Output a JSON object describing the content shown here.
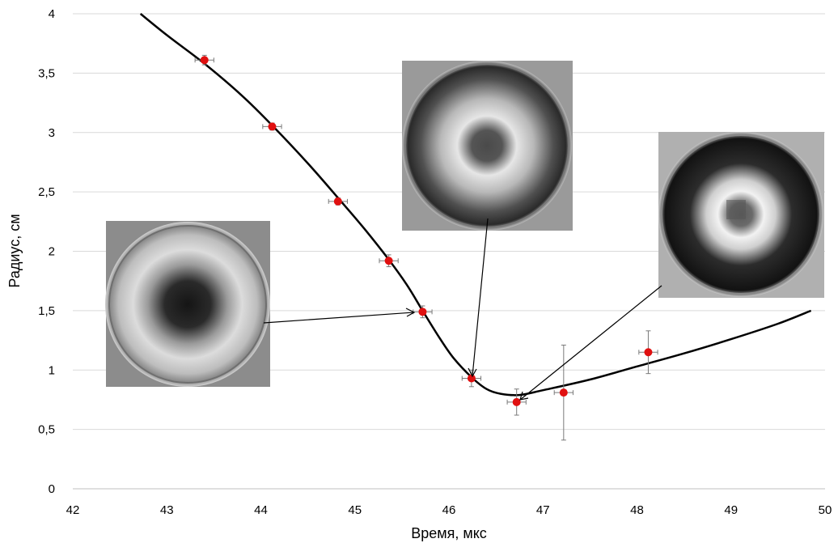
{
  "chart_data": {
    "type": "scatter",
    "title": "",
    "xlabel": "Время, мкс",
    "ylabel": "Радиус, см",
    "xlim": [
      42,
      50
    ],
    "ylim": [
      0,
      4
    ],
    "x_ticks": [
      42,
      43,
      44,
      45,
      46,
      47,
      48,
      49,
      50
    ],
    "y_ticks": [
      0,
      0.5,
      1,
      1.5,
      2,
      2.5,
      3,
      3.5,
      4
    ],
    "x_tick_labels": [
      "42",
      "43",
      "44",
      "45",
      "46",
      "47",
      "48",
      "49",
      "50"
    ],
    "y_tick_labels": [
      "0",
      "0,5",
      "1",
      "1,5",
      "2",
      "2,5",
      "3",
      "3,5",
      "4"
    ],
    "grid": "horizontal",
    "legend": "none",
    "colors": {
      "points": "#e01010",
      "curve": "#000000",
      "grid": "#d9d9d9"
    },
    "points": [
      {
        "x": 43.4,
        "y": 3.61,
        "xerr": 0.1,
        "yerr": 0.04
      },
      {
        "x": 44.12,
        "y": 3.05,
        "xerr": 0.1,
        "yerr": 0.03
      },
      {
        "x": 44.82,
        "y": 2.42,
        "xerr": 0.1,
        "yerr": 0.03
      },
      {
        "x": 45.36,
        "y": 1.92,
        "xerr": 0.1,
        "yerr": 0.05
      },
      {
        "x": 45.72,
        "y": 1.49,
        "xerr": 0.1,
        "yerr": 0.05
      },
      {
        "x": 46.24,
        "y": 0.93,
        "xerr": 0.1,
        "yerr": 0.07
      },
      {
        "x": 46.72,
        "y": 0.73,
        "xerr": 0.1,
        "yerr": 0.11
      },
      {
        "x": 47.22,
        "y": 0.81,
        "xerr": 0.1,
        "yerr": 0.4
      },
      {
        "x": 48.12,
        "y": 1.15,
        "xerr": 0.1,
        "yerr": 0.18
      }
    ],
    "fit_curve": [
      [
        42.72,
        4.0
      ],
      [
        43.0,
        3.82
      ],
      [
        43.4,
        3.58
      ],
      [
        43.8,
        3.31
      ],
      [
        44.12,
        3.06
      ],
      [
        44.5,
        2.74
      ],
      [
        44.82,
        2.45
      ],
      [
        45.1,
        2.19
      ],
      [
        45.36,
        1.93
      ],
      [
        45.55,
        1.72
      ],
      [
        45.72,
        1.5
      ],
      [
        45.9,
        1.27
      ],
      [
        46.05,
        1.1
      ],
      [
        46.24,
        0.94
      ],
      [
        46.4,
        0.84
      ],
      [
        46.55,
        0.8
      ],
      [
        46.75,
        0.79
      ],
      [
        47.0,
        0.83
      ],
      [
        47.5,
        0.92
      ],
      [
        48.0,
        1.03
      ],
      [
        48.5,
        1.14
      ],
      [
        49.0,
        1.26
      ],
      [
        49.5,
        1.39
      ],
      [
        49.85,
        1.5
      ]
    ],
    "insets": [
      {
        "name": "inset-ring-1",
        "point_index": 4,
        "dark_center": 0.55
      },
      {
        "name": "inset-ring-2",
        "point_index": 5,
        "dark_center": 0.35
      },
      {
        "name": "inset-ring-3",
        "point_index": 6,
        "dark_center": 0.25
      }
    ]
  }
}
